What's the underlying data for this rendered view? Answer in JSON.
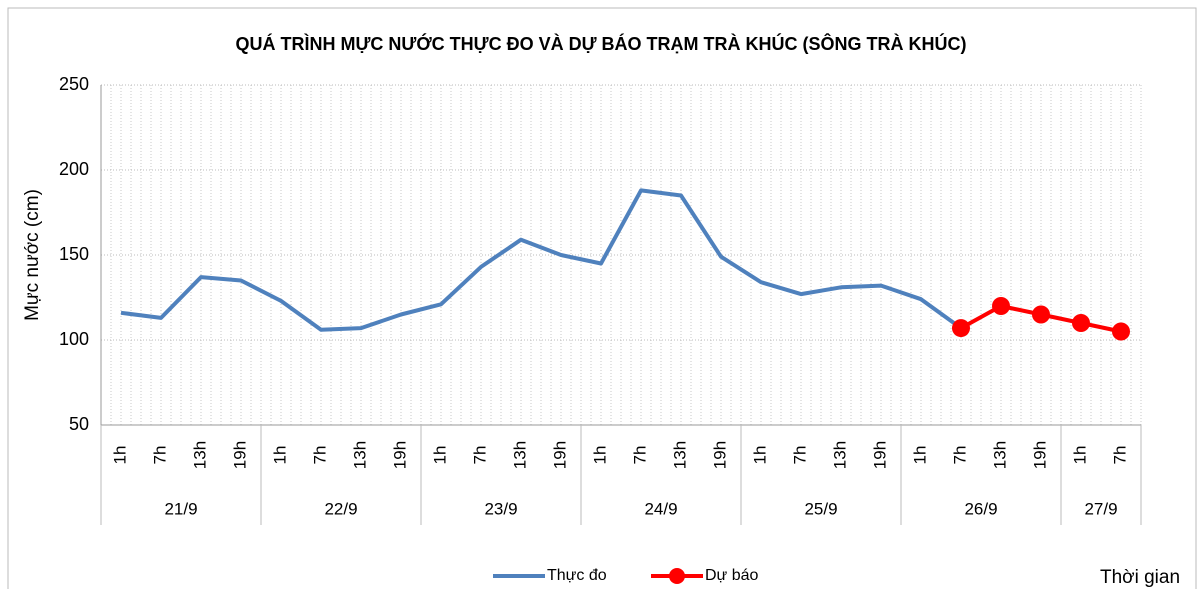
{
  "chart_data": {
    "type": "line",
    "title": "QUÁ TRÌNH MỰC NƯỚC THỰC ĐO VÀ DỰ BÁO TRẠM TRÀ KHÚC (SÔNG TRÀ KHÚC)",
    "y_label": "Mực nước (cm)",
    "x_label": "Thời gian",
    "categories": [
      "1h",
      "7h",
      "13h",
      "19h",
      "1h",
      "7h",
      "13h",
      "19h",
      "1h",
      "7h",
      "13h",
      "19h",
      "1h",
      "7h",
      "13h",
      "19h",
      "1h",
      "7h",
      "13h",
      "19h",
      "1h",
      "7h",
      "13h",
      "19h",
      "1h",
      "7h"
    ],
    "day_labels": [
      "21/9",
      "22/9",
      "23/9",
      "24/9",
      "25/9",
      "26/9",
      "27/9"
    ],
    "series": [
      {
        "name": "Thực đo",
        "color": "#4f81bd",
        "values": [
          116,
          113,
          137,
          135,
          123,
          106,
          107,
          115,
          121,
          143,
          159,
          150,
          145,
          188,
          185,
          149,
          134,
          127,
          131,
          132,
          124,
          107,
          null,
          null,
          null,
          null
        ]
      },
      {
        "name": "Dự báo",
        "color": "#ff0000",
        "values": [
          null,
          null,
          null,
          null,
          null,
          null,
          null,
          null,
          null,
          null,
          null,
          null,
          null,
          null,
          null,
          null,
          null,
          null,
          null,
          null,
          null,
          107,
          120,
          115,
          110,
          105
        ]
      }
    ],
    "ylim": [
      50,
      250
    ],
    "yticks": [
      50,
      100,
      150,
      200,
      250
    ],
    "grid": true,
    "legend": "bottom"
  }
}
